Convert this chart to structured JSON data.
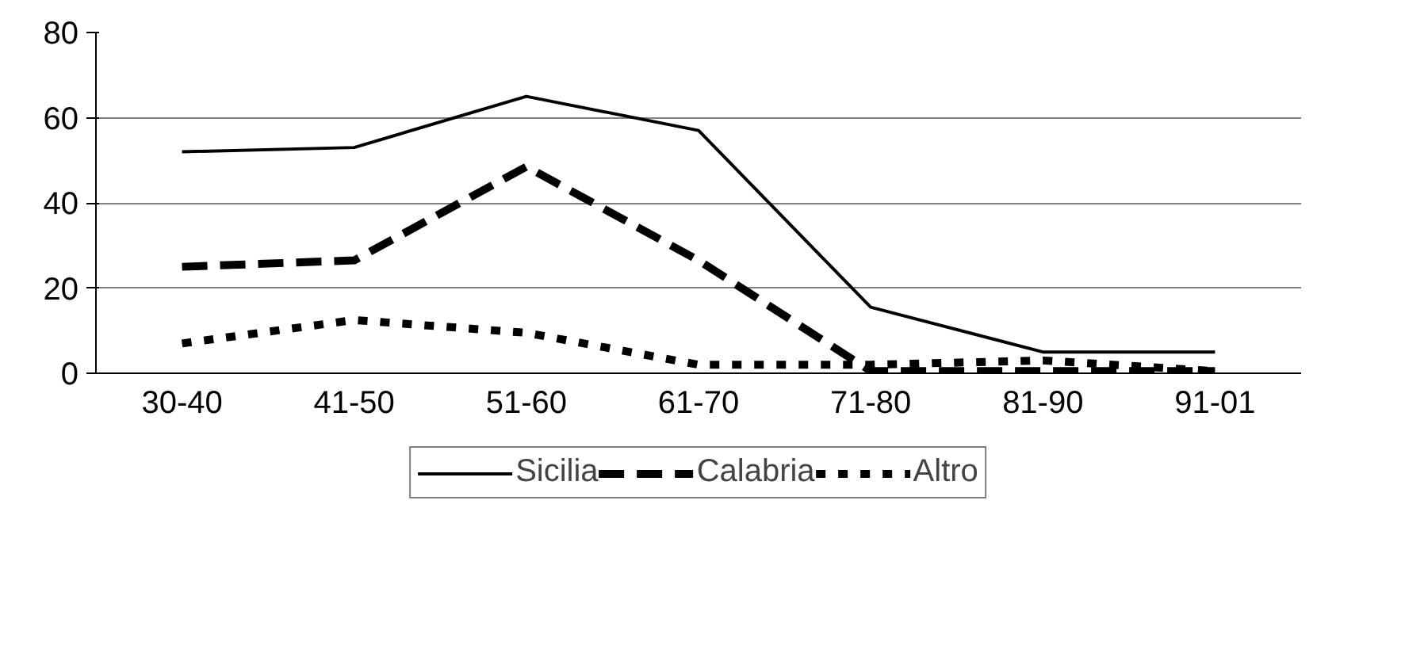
{
  "chart_data": {
    "type": "line",
    "categories": [
      "30-40",
      "41-50",
      "51-60",
      "61-70",
      "71-80",
      "81-90",
      "91-01"
    ],
    "series": [
      {
        "name": "Sicilia",
        "color": "#000000",
        "line_style": "solid",
        "values": [
          52,
          53,
          65,
          57,
          15.5,
          5,
          5
        ]
      },
      {
        "name": "Calabria",
        "color": "#000000",
        "line_style": "dashed",
        "values": [
          25,
          26.5,
          48.5,
          26.5,
          0.5,
          0.5,
          0.5
        ]
      },
      {
        "name": "Altro",
        "color": "#000000",
        "line_style": "dotted",
        "values": [
          7,
          12.5,
          9.5,
          2,
          2,
          3,
          0.5
        ]
      }
    ],
    "ylim": [
      0,
      80
    ],
    "yticks": [
      0,
      20,
      40,
      60,
      80
    ],
    "grid": "y",
    "legend": "bottom"
  }
}
